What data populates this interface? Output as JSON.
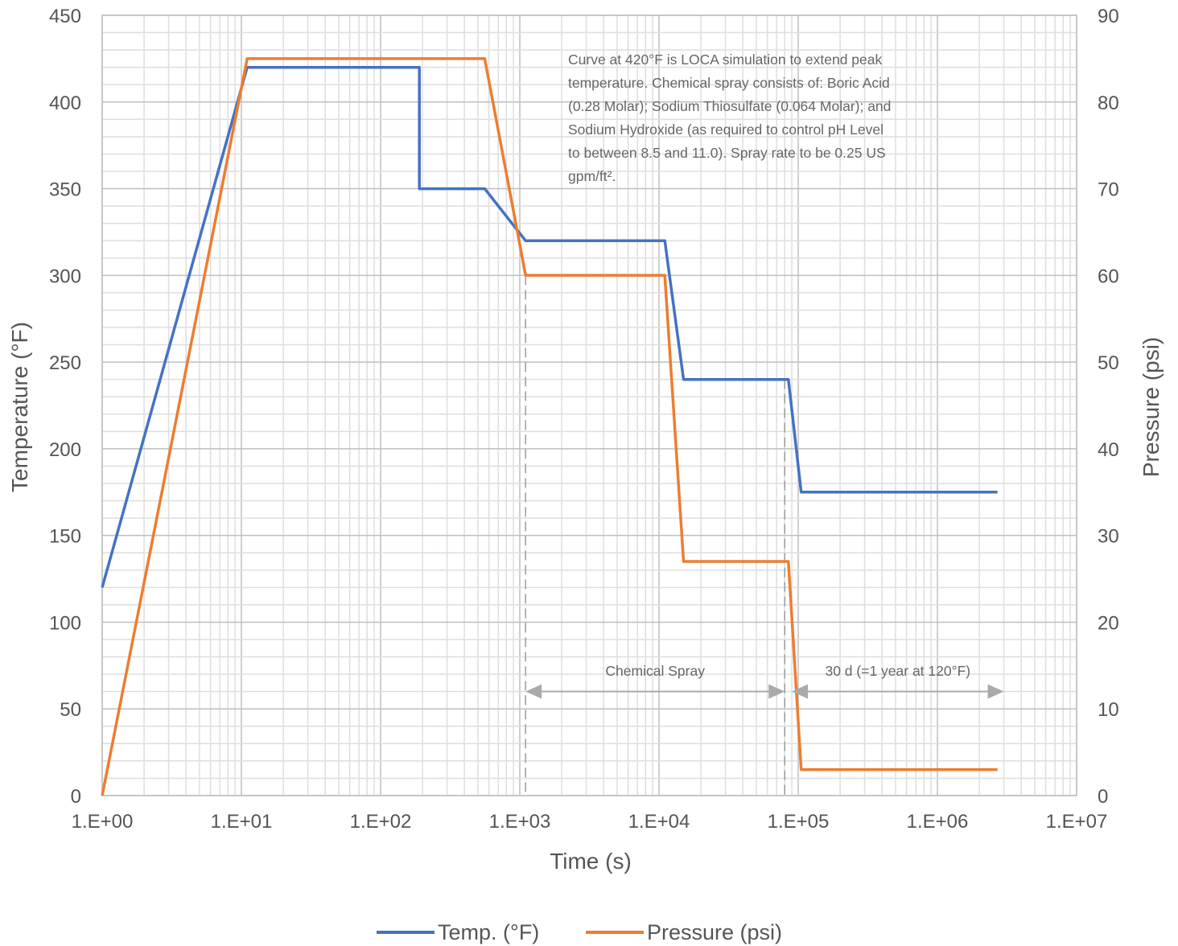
{
  "chart_data": {
    "type": "line",
    "xlabel": "Time (s)",
    "ylabel": "Temperature (°F)",
    "y2label": "Pressure (psi)",
    "xscale": "log",
    "xlim": [
      1,
      10000000
    ],
    "ylim": [
      0,
      450
    ],
    "y2lim": [
      0,
      90
    ],
    "x_ticks": [
      "1.E+00",
      "1.E+01",
      "1.E+02",
      "1.E+03",
      "1.E+04",
      "1.E+05",
      "1.E+06",
      "1.E+07"
    ],
    "y_ticks": [
      "0",
      "50",
      "100",
      "150",
      "200",
      "250",
      "300",
      "350",
      "400",
      "450"
    ],
    "y2_ticks": [
      "0",
      "10",
      "20",
      "30",
      "40",
      "50",
      "60",
      "70",
      "80",
      "90"
    ],
    "grid": true,
    "legend_position": "bottom-center",
    "series": [
      {
        "name": "Temp. (°F)",
        "axis": "left",
        "color": "#4472c4",
        "points": [
          [
            1,
            120
          ],
          [
            11,
            420
          ],
          [
            190,
            420
          ],
          [
            190,
            350
          ],
          [
            560,
            350
          ],
          [
            1100,
            320
          ],
          [
            11000,
            320
          ],
          [
            15000,
            240
          ],
          [
            85000,
            240
          ],
          [
            105000,
            175
          ],
          [
            2700000,
            175
          ]
        ]
      },
      {
        "name": "Pressure (psi)",
        "axis": "right",
        "color": "#ed7d31",
        "points": [
          [
            1,
            0
          ],
          [
            11,
            85
          ],
          [
            560,
            85
          ],
          [
            1100,
            60
          ],
          [
            11000,
            60
          ],
          [
            15000,
            27
          ],
          [
            85000,
            27
          ],
          [
            105000,
            3
          ],
          [
            2700000,
            3
          ]
        ]
      }
    ],
    "annotations": {
      "note_lines": [
        "Curve at 420°F is LOCA simulation to extend peak",
        "temperature. Chemical spray consists of: Boric Acid",
        "(0.28 Molar); Sodium Thiosulfate (0.064 Molar); and",
        "Sodium Hydroxide (as required to control pH Level",
        "to between 8.5 and 11.0). Spray rate to be 0.25 US",
        "gpm/ft²."
      ],
      "spans": [
        {
          "label": "Chemical Spray",
          "x_start": 1100,
          "x_end": 80000,
          "y": 60,
          "label_y": 72
        },
        {
          "label": "30 d (=1 year at 120°F)",
          "x_start": 90000,
          "x_end": 3000000,
          "y": 60,
          "label_y": 72
        }
      ],
      "vlines": [
        {
          "x": 1100,
          "y_from": 300,
          "y_to": 0
        },
        {
          "x": 80000,
          "y_from": 240,
          "y_to": 0
        }
      ]
    }
  }
}
